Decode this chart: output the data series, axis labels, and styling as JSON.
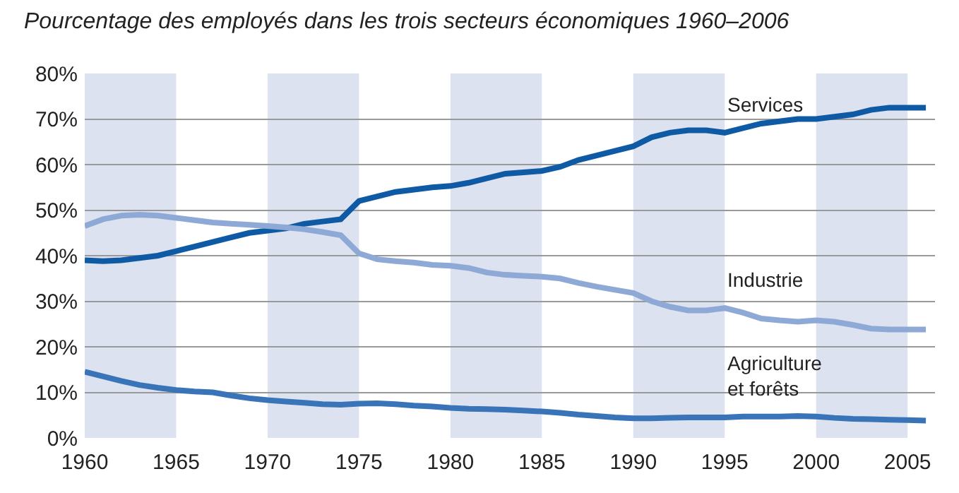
{
  "chart_data": {
    "type": "line",
    "title": "Pourcentage des employés dans les trois secteurs économiques 1960–2006",
    "x": [
      1960,
      1961,
      1962,
      1963,
      1964,
      1965,
      1966,
      1967,
      1968,
      1969,
      1970,
      1971,
      1972,
      1973,
      1974,
      1975,
      1976,
      1977,
      1978,
      1979,
      1980,
      1981,
      1982,
      1983,
      1984,
      1985,
      1986,
      1987,
      1988,
      1989,
      1990,
      1991,
      1992,
      1993,
      1994,
      1995,
      1996,
      1997,
      1998,
      1999,
      2000,
      2001,
      2002,
      2003,
      2004,
      2005,
      2006
    ],
    "series": [
      {
        "name": "Services",
        "color": "#0f5aa5",
        "values": [
          39,
          38.8,
          39,
          39.5,
          40,
          41,
          42,
          43,
          44,
          45,
          45.5,
          46,
          47,
          47.5,
          48,
          52,
          53,
          54,
          54.5,
          55,
          55.3,
          56,
          57,
          58,
          58.3,
          58.6,
          59.5,
          61,
          62,
          63,
          64,
          66,
          67,
          67.5,
          67.5,
          67,
          68,
          69,
          69.5,
          70,
          70,
          70.5,
          71,
          72,
          72.5,
          72.5,
          72.5
        ]
      },
      {
        "name": "Industrie",
        "color": "#8fa9d6",
        "values": [
          46.5,
          48,
          48.8,
          49,
          48.8,
          48.3,
          47.8,
          47.3,
          47,
          46.8,
          46.5,
          46.2,
          45.8,
          45.2,
          44.5,
          40.5,
          39.2,
          38.8,
          38.5,
          38,
          37.8,
          37.3,
          36.3,
          35.8,
          35.6,
          35.4,
          35,
          34,
          33.2,
          32.5,
          31.8,
          30,
          28.8,
          28,
          28,
          28.5,
          27.5,
          26.2,
          25.8,
          25.5,
          25.8,
          25.5,
          24.8,
          24,
          23.8,
          23.8,
          23.8
        ]
      },
      {
        "name": "Agriculture\net forêts",
        "color": "#3a74b8",
        "values": [
          14.5,
          13.5,
          12.5,
          11.6,
          11,
          10.5,
          10.2,
          10,
          9.3,
          8.7,
          8.3,
          8,
          7.7,
          7.4,
          7.3,
          7.5,
          7.6,
          7.4,
          7.1,
          6.9,
          6.6,
          6.4,
          6.3,
          6.2,
          6,
          5.8,
          5.5,
          5.1,
          4.8,
          4.5,
          4.3,
          4.3,
          4.4,
          4.5,
          4.5,
          4.5,
          4.7,
          4.7,
          4.7,
          4.8,
          4.7,
          4.4,
          4.2,
          4.1,
          4,
          3.9,
          3.8
        ]
      }
    ],
    "xlim": [
      1960,
      2006.5
    ],
    "xticks": [
      1960,
      1965,
      1970,
      1975,
      1980,
      1985,
      1990,
      1995,
      2000,
      2005
    ],
    "ylim": [
      0,
      80
    ],
    "yticks": [
      {
        "value": 0,
        "label": "0%"
      },
      {
        "value": 10,
        "label": "10%"
      },
      {
        "value": 20,
        "label": "20%"
      },
      {
        "value": 30,
        "label": "30%"
      },
      {
        "value": 40,
        "label": "40%"
      },
      {
        "value": 50,
        "label": "50%"
      },
      {
        "value": 60,
        "label": "60%"
      },
      {
        "value": 70,
        "label": "70%"
      },
      {
        "value": 80,
        "label": "80%"
      }
    ],
    "bands": [
      {
        "axis": "x",
        "from": 1960,
        "to": 1965,
        "color": "#dce2ef"
      },
      {
        "axis": "x",
        "from": 1970,
        "to": 1975,
        "color": "#dce2ef"
      },
      {
        "axis": "x",
        "from": 1980,
        "to": 1985,
        "color": "#dce2ef"
      },
      {
        "axis": "x",
        "from": 1990,
        "to": 1995,
        "color": "#dce2ef"
      },
      {
        "axis": "x",
        "from": 2000,
        "to": 2005,
        "color": "#dce2ef"
      }
    ],
    "grid": "y",
    "legend": false,
    "marker": "none",
    "line_style": "solid"
  }
}
